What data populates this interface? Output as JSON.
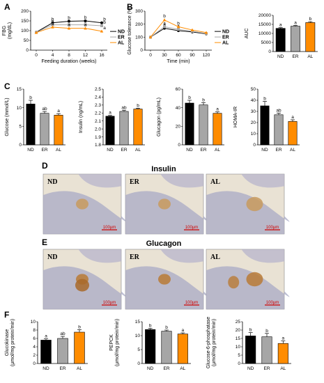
{
  "colors": {
    "ND": "#000000",
    "ER": "#a6a6a6",
    "AL": "#ff8c00",
    "scale_bar": "#d00000"
  },
  "panel_labels": [
    "A",
    "B",
    "C",
    "D",
    "E",
    "F"
  ],
  "microscopy": {
    "insulin_title": "Insulin",
    "glucagon_title": "Glucagon",
    "labels": [
      "ND",
      "ER",
      "AL"
    ],
    "scale_bar_label": "100μm"
  },
  "chart_data": [
    {
      "id": "fbg",
      "type": "line",
      "ylabel": "FBG\n(mg/dL)",
      "xlabel": "Feeding duration (weeks)",
      "x": [
        0,
        4,
        8,
        12,
        16
      ],
      "ylim": [
        0,
        200
      ],
      "yticks": [
        0,
        50,
        100,
        150,
        200
      ],
      "grid": false,
      "legend_position": "right",
      "series": [
        {
          "name": "ND",
          "values": [
            92,
            140,
            148,
            150,
            140
          ],
          "errors": [
            5,
            6,
            5,
            6,
            6
          ],
          "sig": [
            "",
            "b",
            "b",
            "b",
            "b"
          ]
        },
        {
          "name": "ER",
          "values": [
            91,
            130,
            130,
            130,
            125
          ],
          "errors": [
            5,
            6,
            5,
            5,
            5
          ],
          "sig": [
            "",
            "b",
            "b",
            "b",
            "b"
          ]
        },
        {
          "name": "AL",
          "values": [
            90,
            118,
            112,
            112,
            97
          ],
          "errors": [
            5,
            5,
            6,
            5,
            5
          ],
          "sig": [
            "",
            "a",
            "a",
            "a",
            "a"
          ]
        }
      ]
    },
    {
      "id": "gtt",
      "type": "line",
      "ylabel": "Glucose tolerance (%)",
      "xlabel": "Time (min)",
      "x": [
        0,
        30,
        60,
        90,
        120
      ],
      "ylim": [
        0,
        300
      ],
      "yticks": [
        0,
        100,
        200,
        300
      ],
      "grid": false,
      "legend_position": "right",
      "series": [
        {
          "name": "ND",
          "values": [
            100,
            168,
            150,
            140,
            125
          ],
          "errors": [
            3,
            8,
            6,
            5,
            5
          ],
          "sig": [
            "",
            "a",
            "a",
            "",
            ""
          ]
        },
        {
          "name": "ER",
          "values": [
            100,
            180,
            160,
            145,
            128
          ],
          "errors": [
            3,
            8,
            6,
            5,
            5
          ],
          "sig": [
            "",
            "a",
            "a",
            "",
            ""
          ]
        },
        {
          "name": "AL",
          "values": [
            100,
            232,
            180,
            155,
            135
          ],
          "errors": [
            3,
            12,
            8,
            6,
            5
          ],
          "sig": [
            "",
            "b",
            "b",
            "",
            ""
          ]
        }
      ]
    },
    {
      "id": "auc",
      "type": "bar",
      "ylabel": "AUC",
      "categories": [
        "ND",
        "ER",
        "AL"
      ],
      "values": [
        12800,
        14000,
        16000
      ],
      "errors": [
        400,
        400,
        500
      ],
      "sig": [
        "a",
        "a",
        "b"
      ],
      "ylim": [
        0,
        20000
      ],
      "yticks": [
        0,
        5000,
        10000,
        15000,
        20000
      ]
    },
    {
      "id": "glucose",
      "type": "bar",
      "ylabel": "Glucose (mmol/L)",
      "categories": [
        "ND",
        "ER",
        "AL"
      ],
      "values": [
        11,
        8.5,
        8
      ],
      "errors": [
        1,
        0.5,
        0.4
      ],
      "sig": [
        "b",
        "ab",
        "a"
      ],
      "ylim": [
        0,
        15
      ],
      "yticks": [
        0,
        5,
        10,
        15
      ]
    },
    {
      "id": "insulin",
      "type": "bar",
      "ylabel": "Insulin (ng/mL)",
      "categories": [
        "ND",
        "ER",
        "AL"
      ],
      "values": [
        2.16,
        2.22,
        2.25
      ],
      "errors": [
        0.01,
        0.015,
        0.01
      ],
      "sig": [
        "a",
        "ab",
        "b"
      ],
      "ylim": [
        1.8,
        2.5
      ],
      "yticks": [
        1.8,
        1.9,
        2.0,
        2.1,
        2.2,
        2.3,
        2.4,
        2.5
      ],
      "ytick_labels": [
        "1.8",
        "1.9",
        "2.0",
        "2.1",
        "2.2",
        "2.3",
        "2.4",
        "2.5"
      ]
    },
    {
      "id": "glucagon",
      "type": "bar",
      "ylabel": "Glucagon (pg/mL)",
      "categories": [
        "ND",
        "ER",
        "AL"
      ],
      "values": [
        45,
        43,
        34
      ],
      "errors": [
        3,
        2.5,
        1.5
      ],
      "sig": [
        "b",
        "b",
        "a"
      ],
      "ylim": [
        0,
        60
      ],
      "yticks": [
        0,
        20,
        40,
        60
      ]
    },
    {
      "id": "homa",
      "type": "bar",
      "ylabel": "HOMA-IR",
      "categories": [
        "ND",
        "ER",
        "AL"
      ],
      "values": [
        35,
        27,
        21
      ],
      "errors": [
        4,
        1.5,
        1.5
      ],
      "sig": [
        "b",
        "ab",
        "a"
      ],
      "ylim": [
        0,
        50
      ],
      "yticks": [
        0,
        10,
        20,
        30,
        40,
        50
      ]
    },
    {
      "id": "glucokinase",
      "type": "bar",
      "ylabel": "Glucokinase\n(μmol/mg protein/min)",
      "categories": [
        "ND",
        "ER",
        "AL"
      ],
      "values": [
        5.6,
        6,
        7.5
      ],
      "errors": [
        0.3,
        0.5,
        0.6
      ],
      "sig": [
        "a",
        "ab",
        "b"
      ],
      "ylim": [
        0,
        10
      ],
      "yticks": [
        0,
        2,
        4,
        6,
        8,
        10
      ]
    },
    {
      "id": "pepck",
      "type": "bar",
      "ylabel": "PEPCK\n(μmol/mg protein/min)",
      "categories": [
        "ND",
        "ER",
        "AL"
      ],
      "values": [
        12.2,
        11.6,
        10.6
      ],
      "errors": [
        0.4,
        0.4,
        0.4
      ],
      "sig": [
        "b",
        "b",
        "a"
      ],
      "ylim": [
        0,
        15
      ],
      "yticks": [
        0,
        5,
        10,
        15
      ]
    },
    {
      "id": "g6p",
      "type": "bar",
      "ylabel": "Glucose-6-phosphatase\n(μmol/mg protein/min)",
      "categories": [
        "ND",
        "ER",
        "AL"
      ],
      "values": [
        16.5,
        16,
        12
      ],
      "errors": [
        2,
        2,
        1.5
      ],
      "sig": [
        "b",
        "b",
        "a"
      ],
      "ylim": [
        0,
        25
      ],
      "yticks": [
        0,
        5,
        10,
        15,
        20,
        25
      ]
    }
  ]
}
